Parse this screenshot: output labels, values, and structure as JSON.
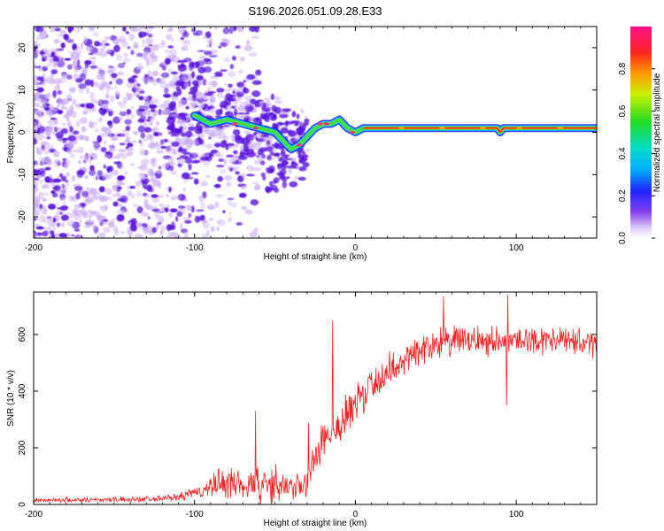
{
  "title": "S196.2026.051.09.28.E33",
  "colors": {
    "snr_line": "#ee2222",
    "ridge_core": "#ee1122",
    "ridge_band": "#44dd44",
    "ridge_outline": "#1133ff",
    "cloud_dark": "#5511dd",
    "cloud_light": "#c8aaf2"
  },
  "chart_data": [
    {
      "type": "heatmap",
      "name": "spectrogram",
      "xlabel": "Height of straight line (km)",
      "ylabel": "Frequency (Hz)",
      "xlim": [
        -200,
        150
      ],
      "ylim": [
        -25,
        25
      ],
      "x_ticks": [
        -200,
        -100,
        0,
        100
      ],
      "y_ticks": [
        -20,
        -10,
        0,
        10,
        20
      ],
      "colorbar": {
        "label": "Normalized spectral amplitude",
        "range": [
          0,
          1
        ],
        "ticks": [
          "0.0",
          "0.2",
          "0.4",
          "0.6",
          "0.8"
        ],
        "tick_values": [
          0,
          0.2,
          0.4,
          0.6,
          0.8
        ]
      },
      "ridge": {
        "x": [
          -100,
          -90,
          -80,
          -70,
          -60,
          -50,
          -40,
          -35,
          -30,
          -25,
          -20,
          -15,
          -10,
          -5,
          0,
          5,
          10,
          20,
          40,
          60,
          80,
          88,
          90,
          92,
          100,
          120,
          150
        ],
        "freq": [
          4,
          2,
          3,
          2,
          1,
          0,
          -4,
          -3,
          -1,
          1,
          2,
          2,
          3,
          1,
          0,
          1,
          1,
          1,
          1,
          1,
          1,
          1,
          0,
          1,
          1,
          1,
          1
        ]
      }
    },
    {
      "type": "line",
      "name": "snr",
      "xlabel": "Height of straight line (km)",
      "ylabel": "SNR (10 * v/v)",
      "xlim": [
        -200,
        150
      ],
      "ylim": [
        0,
        750
      ],
      "x_ticks": [
        -200,
        -100,
        0,
        100
      ],
      "y_ticks": [
        0,
        200,
        400,
        600
      ],
      "envelope": {
        "x": [
          -200,
          -140,
          -110,
          -100,
          -90,
          -80,
          -70,
          -60,
          -50,
          -40,
          -30,
          -25,
          -20,
          -15,
          -10,
          -5,
          0,
          10,
          20,
          30,
          40,
          50,
          60,
          80,
          90,
          100,
          120,
          150
        ],
        "mean": [
          15,
          18,
          25,
          40,
          60,
          80,
          70,
          75,
          70,
          55,
          70,
          170,
          250,
          260,
          280,
          310,
          350,
          420,
          470,
          510,
          550,
          570,
          575,
          580,
          580,
          580,
          580,
          570
        ],
        "spread": [
          10,
          12,
          15,
          30,
          50,
          80,
          70,
          90,
          80,
          50,
          80,
          100,
          110,
          100,
          100,
          100,
          100,
          90,
          80,
          80,
          70,
          70,
          70,
          70,
          60,
          60,
          60,
          60
        ]
      },
      "spikes": [
        {
          "x": -14,
          "y": 650
        },
        {
          "x": -62,
          "y": 330
        },
        {
          "x": -29,
          "y": 290
        },
        {
          "x": 55,
          "y": 735
        },
        {
          "x": 95,
          "y": 740
        },
        {
          "x": 94,
          "y": 350
        }
      ]
    }
  ]
}
